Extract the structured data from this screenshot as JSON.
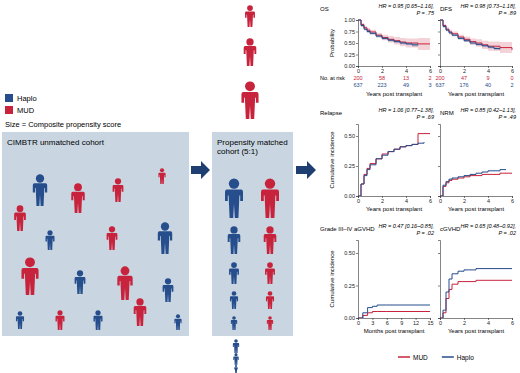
{
  "diagram": {
    "legend": [
      {
        "label": "Haplo",
        "color": "#264d8c"
      },
      {
        "label": "MUD",
        "color": "#c8233c"
      }
    ],
    "note": "Size = Composite propensity score",
    "boxes": [
      "CIMBTR unmatched cohort",
      "Propensity matched cohort (5:1)"
    ]
  },
  "chart_data": [
    {
      "type": "line",
      "line_style": "step",
      "title": "OS",
      "annotations": [
        "HR = 0.95 [0.65–1.16],",
        "P = .75"
      ],
      "x_label": "Years post transplant",
      "y_label": "Probability",
      "at_risk_title": "No. at risk",
      "xlim": [
        0,
        6
      ],
      "xticks": [
        0,
        2,
        4,
        6
      ],
      "ylim": [
        0,
        1
      ],
      "yticks": [
        {
          "value": 0,
          "label": "0.00"
        },
        {
          "value": 0.25,
          "label": "0.25"
        },
        {
          "value": 0.5,
          "label": "0.50"
        },
        {
          "value": 0.75,
          "label": "0.75"
        },
        {
          "value": 1,
          "label": "1.00"
        }
      ],
      "series": [
        {
          "name": "MUD",
          "color": "#c8233c",
          "x": [
            0,
            0.25,
            0.5,
            0.75,
            1,
            1.5,
            2,
            2.5,
            3,
            3.5,
            4,
            5,
            6
          ],
          "values": [
            1,
            0.9,
            0.83,
            0.78,
            0.74,
            0.67,
            0.62,
            0.58,
            0.55,
            0.52,
            0.5,
            0.48,
            0.48
          ],
          "lower": [
            1,
            0.86,
            0.79,
            0.73,
            0.69,
            0.62,
            0.56,
            0.51,
            0.47,
            0.43,
            0.4,
            0.35,
            0.35
          ],
          "upper": [
            1,
            0.94,
            0.87,
            0.83,
            0.79,
            0.72,
            0.68,
            0.65,
            0.63,
            0.61,
            0.6,
            0.61,
            0.61
          ],
          "at_risk": [
            200,
            58,
            13,
            2
          ]
        },
        {
          "name": "Haplo",
          "color": "#264d8c",
          "x": [
            0,
            0.25,
            0.5,
            0.75,
            1,
            1.5,
            2,
            2.5,
            3,
            3.5,
            4,
            4.5,
            5
          ],
          "values": [
            1,
            0.88,
            0.8,
            0.75,
            0.71,
            0.65,
            0.6,
            0.56,
            0.53,
            0.5,
            0.48,
            0.46,
            0.45
          ],
          "lower": [
            1,
            0.85,
            0.77,
            0.72,
            0.68,
            0.62,
            0.57,
            0.53,
            0.5,
            0.47,
            0.45,
            0.42,
            0.4
          ],
          "upper": [
            1,
            0.91,
            0.83,
            0.78,
            0.74,
            0.68,
            0.63,
            0.59,
            0.56,
            0.53,
            0.51,
            0.5,
            0.5
          ],
          "at_risk": [
            637,
            223,
            49,
            3
          ]
        }
      ]
    },
    {
      "type": "line",
      "line_style": "step",
      "title": "DFS",
      "annotations": [
        "HR = 0.98 [0.73–1.18],",
        "P = .89"
      ],
      "x_label": "Years post transplant",
      "at_risk_title": "No. at risk",
      "tick_labels": "x",
      "xlim": [
        0,
        6
      ],
      "xticks": [
        0,
        2,
        4,
        6
      ],
      "ylim": [
        0,
        1
      ],
      "yticks": [
        0,
        0.25,
        0.5,
        0.75,
        1
      ],
      "series": [
        {
          "name": "MUD",
          "color": "#c8233c",
          "x": [
            0,
            0.25,
            0.5,
            0.75,
            1,
            1.5,
            2,
            2.5,
            3,
            3.5,
            4,
            5,
            6
          ],
          "values": [
            1,
            0.88,
            0.8,
            0.74,
            0.7,
            0.63,
            0.58,
            0.53,
            0.5,
            0.46,
            0.43,
            0.4,
            0.35
          ],
          "lower": [
            1,
            0.84,
            0.76,
            0.69,
            0.65,
            0.58,
            0.52,
            0.46,
            0.42,
            0.37,
            0.33,
            0.28,
            0.22
          ],
          "upper": [
            1,
            0.92,
            0.84,
            0.79,
            0.75,
            0.68,
            0.64,
            0.6,
            0.58,
            0.55,
            0.53,
            0.52,
            0.48
          ],
          "at_risk": [
            200,
            47,
            9,
            0
          ]
        },
        {
          "name": "Haplo",
          "color": "#264d8c",
          "x": [
            0,
            0.25,
            0.5,
            0.75,
            1,
            1.5,
            2,
            2.5,
            3,
            3.5,
            4,
            4.5,
            5
          ],
          "values": [
            1,
            0.86,
            0.78,
            0.72,
            0.67,
            0.6,
            0.55,
            0.5,
            0.47,
            0.44,
            0.41,
            0.38,
            0.36
          ],
          "lower": [
            1,
            0.83,
            0.75,
            0.69,
            0.64,
            0.57,
            0.52,
            0.47,
            0.44,
            0.41,
            0.38,
            0.34,
            0.31
          ],
          "upper": [
            1,
            0.89,
            0.81,
            0.75,
            0.7,
            0.63,
            0.58,
            0.53,
            0.5,
            0.47,
            0.44,
            0.42,
            0.41
          ],
          "at_risk": [
            637,
            176,
            40,
            2
          ]
        }
      ]
    },
    {
      "type": "line",
      "line_style": "step",
      "title": "Relapse",
      "annotations": [
        "HR = 1.06 [0.77–1.38],",
        "P = .69"
      ],
      "x_label": "Years post transplant",
      "y_label": "Cumulative incidence",
      "xlim": [
        0,
        6
      ],
      "xticks": [
        0,
        2,
        4,
        6
      ],
      "ylim": [
        0,
        0.6
      ],
      "yticks": [
        {
          "value": 0,
          "label": "0.00"
        },
        {
          "value": 0.25,
          "label": "0.25"
        },
        {
          "value": 0.5,
          "label": "0.50"
        }
      ],
      "series": [
        {
          "name": "MUD",
          "color": "#c8233c",
          "x": [
            0,
            0.25,
            0.5,
            0.75,
            1,
            1.5,
            2,
            2.5,
            3,
            3.5,
            4,
            4.5,
            5,
            6
          ],
          "values": [
            0,
            0.1,
            0.18,
            0.23,
            0.27,
            0.31,
            0.35,
            0.37,
            0.39,
            0.41,
            0.42,
            0.43,
            0.52,
            0.52
          ]
        },
        {
          "name": "Haplo",
          "color": "#264d8c",
          "x": [
            0,
            0.25,
            0.5,
            0.75,
            1,
            1.5,
            2,
            2.5,
            3,
            3.5,
            4,
            4.5,
            5,
            5.5
          ],
          "values": [
            0,
            0.1,
            0.17,
            0.22,
            0.26,
            0.31,
            0.34,
            0.37,
            0.39,
            0.41,
            0.42,
            0.43,
            0.44,
            0.45
          ]
        }
      ]
    },
    {
      "type": "line",
      "line_style": "step",
      "title": "NRM",
      "annotations": [
        "HR = 0.85 [0.42–1.13],",
        "P = .49"
      ],
      "x_label": "Years post transplant",
      "tick_labels": "x",
      "xlim": [
        0,
        6
      ],
      "xticks": [
        0,
        2,
        4,
        6
      ],
      "ylim": [
        0,
        0.6
      ],
      "yticks": [
        0,
        0.25,
        0.5
      ],
      "series": [
        {
          "name": "MUD",
          "color": "#c8233c",
          "x": [
            0,
            0.25,
            0.5,
            0.75,
            1,
            1.5,
            2,
            2.5,
            3,
            3.5,
            4,
            4.5,
            5,
            6
          ],
          "values": [
            0,
            0.08,
            0.11,
            0.13,
            0.14,
            0.15,
            0.16,
            0.17,
            0.17,
            0.18,
            0.18,
            0.18,
            0.19,
            0.19
          ]
        },
        {
          "name": "Haplo",
          "color": "#264d8c",
          "x": [
            0,
            0.25,
            0.5,
            0.75,
            1,
            1.5,
            2,
            2.5,
            3,
            3.5,
            4,
            4.5,
            5,
            5.5
          ],
          "values": [
            0,
            0.09,
            0.12,
            0.14,
            0.15,
            0.16,
            0.17,
            0.18,
            0.19,
            0.2,
            0.21,
            0.21,
            0.22,
            0.22
          ]
        }
      ]
    },
    {
      "type": "line",
      "line_style": "step",
      "title": "Grade III–IV aGVHD",
      "annotations": [
        "HR = 0.47 [0.16–0.85],",
        "P = .02"
      ],
      "x_label": "Months post transplant",
      "y_label": "Cumulative incidence",
      "xlim": [
        0,
        15
      ],
      "xticks": [
        0,
        3,
        6,
        9,
        12,
        15
      ],
      "ylim": [
        0,
        0.6
      ],
      "yticks": [
        {
          "value": 0,
          "label": "0.00"
        },
        {
          "value": 0.25,
          "label": "0.25"
        },
        {
          "value": 0.5,
          "label": "0.50"
        }
      ],
      "series": [
        {
          "name": "MUD",
          "color": "#c8233c",
          "x": [
            0,
            1,
            2,
            3,
            4,
            6,
            15
          ],
          "values": [
            0,
            0.02,
            0.04,
            0.05,
            0.05,
            0.05,
            0.05
          ]
        },
        {
          "name": "Haplo",
          "color": "#264d8c",
          "x": [
            0,
            1,
            2,
            3,
            4,
            6,
            15
          ],
          "values": [
            0,
            0.04,
            0.08,
            0.09,
            0.1,
            0.1,
            0.1
          ]
        }
      ]
    },
    {
      "type": "line",
      "line_style": "step",
      "title": "cGVHD",
      "annotations": [
        "HR = 0.65 [0.48–0.92],",
        "P = .02"
      ],
      "x_label": "Years post transplant",
      "tick_labels": "x",
      "legend": "bottom",
      "xlim": [
        0,
        6
      ],
      "xticks": [
        0,
        2,
        4,
        6
      ],
      "ylim": [
        0,
        0.6
      ],
      "yticks": [
        0,
        0.25,
        0.5
      ],
      "series": [
        {
          "name": "MUD",
          "color": "#c8233c",
          "x": [
            0,
            0.25,
            0.5,
            0.75,
            1,
            1.5,
            2,
            3,
            4,
            5,
            6
          ],
          "values": [
            0,
            0.04,
            0.15,
            0.22,
            0.26,
            0.28,
            0.28,
            0.29,
            0.29,
            0.29,
            0.29
          ]
        },
        {
          "name": "Haplo",
          "color": "#264d8c",
          "x": [
            0,
            0.25,
            0.5,
            0.75,
            1,
            1.5,
            2,
            3,
            4,
            5,
            6
          ],
          "values": [
            0,
            0.06,
            0.2,
            0.3,
            0.34,
            0.36,
            0.37,
            0.38,
            0.38,
            0.38,
            0.38
          ]
        }
      ]
    }
  ]
}
